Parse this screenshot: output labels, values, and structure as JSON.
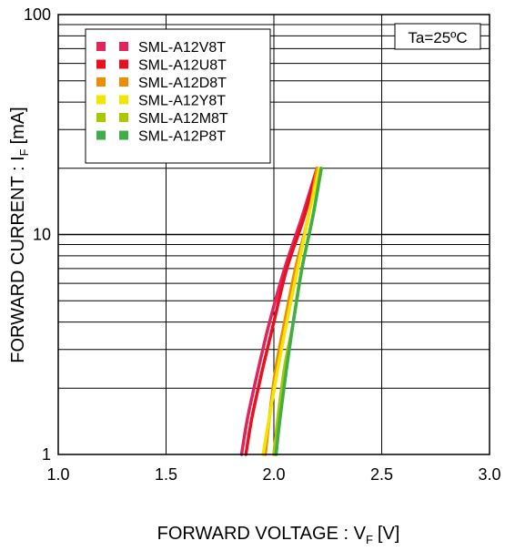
{
  "chart_data": {
    "type": "line",
    "xlabel": "FORWARD VOLTAGE : V",
    "xlabel_sub": "F",
    "xlabel_unit": "[V]",
    "ylabel": "FORWARD CURRENT : I",
    "ylabel_sub": "F",
    "ylabel_unit": "[mA]",
    "xlim": [
      1.0,
      3.0
    ],
    "ylim": [
      1,
      100
    ],
    "yscale": "log",
    "x_ticks": [
      "1.0",
      "1.5",
      "2.0",
      "2.5",
      "3.0"
    ],
    "y_ticks": [
      "1",
      "10",
      "100"
    ],
    "grid": true,
    "annotation": "Ta=25ºC",
    "legend_position": "top-left",
    "series": [
      {
        "name": "SML-A12V8T",
        "color": "#e0245e",
        "x": [
          1.85,
          1.88,
          1.93,
          1.98,
          2.05,
          2.13,
          2.2
        ],
        "y": [
          1,
          1.5,
          2.5,
          4,
          7,
          12,
          20
        ]
      },
      {
        "name": "SML-A12U8T",
        "color": "#e8101e",
        "x": [
          1.87,
          1.9,
          1.95,
          2.0,
          2.06,
          2.14,
          2.2
        ],
        "y": [
          1,
          1.5,
          2.5,
          4,
          7,
          12,
          20
        ]
      },
      {
        "name": "SML-A12D8T",
        "color": "#f08c00",
        "x": [
          1.96,
          1.98,
          2.01,
          2.05,
          2.1,
          2.16,
          2.2
        ],
        "y": [
          1,
          1.5,
          2.5,
          4,
          7,
          12,
          20
        ]
      },
      {
        "name": "SML-A12Y8T",
        "color": "#f2e600",
        "x": [
          1.95,
          1.98,
          2.02,
          2.06,
          2.11,
          2.16,
          2.21
        ],
        "y": [
          1,
          1.5,
          2.5,
          4,
          7,
          12,
          20
        ]
      },
      {
        "name": "SML-A12M8T",
        "color": "#a8c800",
        "x": [
          2.0,
          2.02,
          2.05,
          2.09,
          2.13,
          2.18,
          2.22
        ],
        "y": [
          1,
          1.5,
          2.5,
          4,
          7,
          12,
          20
        ]
      },
      {
        "name": "SML-A12P8T",
        "color": "#3fae49",
        "x": [
          2.01,
          2.03,
          2.06,
          2.09,
          2.13,
          2.18,
          2.22
        ],
        "y": [
          1,
          1.5,
          2.5,
          4,
          7,
          12,
          20
        ]
      }
    ]
  }
}
